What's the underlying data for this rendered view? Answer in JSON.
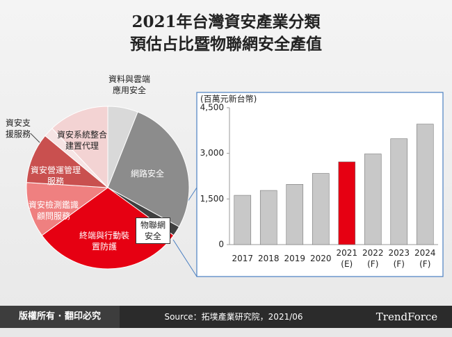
{
  "title": [
    "2021年台灣資安產業分類",
    "預估占比暨物聯網安全產值"
  ],
  "chart_data": [
    {
      "type": "pie",
      "categories": [
        "資料與雲端應用安全",
        "網路安全",
        "物聯網安全",
        "終端與行動裝置防護",
        "資安檢測鑑識顧問服務",
        "資安營運管理服務",
        "資安支援服務",
        "資安系統整合建置代理"
      ],
      "values": [
        6,
        27,
        2,
        30,
        11,
        10,
        2,
        12
      ],
      "colors": [
        "#d9d9d9",
        "#8c8c8c",
        "#404040",
        "#e60012",
        "#ef8080",
        "#c9504f",
        "#f6e4e4",
        "#f3d3d3"
      ]
    },
    {
      "type": "bar",
      "y_label": "(百萬元新台幣)",
      "categories": [
        "2017",
        "2018",
        "2019",
        "2020",
        "2021 (E)",
        "2022 (F)",
        "2023 (F)",
        "2024 (F)"
      ],
      "values": [
        1620,
        1780,
        1980,
        2340,
        2720,
        2980,
        3480,
        3960
      ],
      "colors": [
        "#c8c8c8",
        "#c8c8c8",
        "#c8c8c8",
        "#c8c8c8",
        "#e60012",
        "#c8c8c8",
        "#c8c8c8",
        "#c8c8c8"
      ],
      "ylim": [
        0,
        4500
      ],
      "yticks": [
        0,
        {
          "value": 1500,
          "label": "1,500"
        },
        {
          "value": 3000,
          "label": "3,000"
        },
        {
          "value": 4500,
          "label": "4,500"
        }
      ]
    }
  ],
  "footer": {
    "rights": "版權所有 · 翻印必究",
    "source": "Source：拓墣產業研究院，2021/06",
    "logo": "TrendForce"
  }
}
